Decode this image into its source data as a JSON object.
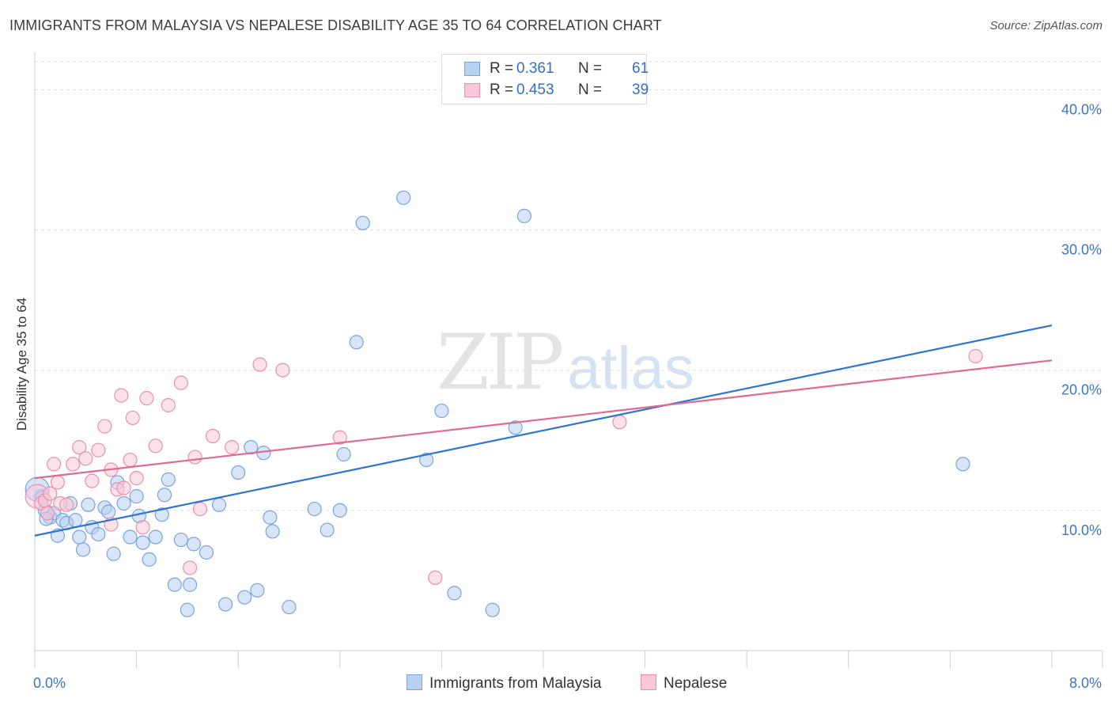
{
  "header": {
    "title": "IMMIGRANTS FROM MALAYSIA VS NEPALESE DISABILITY AGE 35 TO 64 CORRELATION CHART",
    "source": "Source: ZipAtlas.com"
  },
  "watermark": {
    "zip": "ZIP",
    "atlas": "atlas"
  },
  "legend": {
    "r_label": "R =",
    "n_label": "N =",
    "rows": [
      {
        "r": "0.361",
        "n": "61",
        "fill": "#b8d0f2",
        "stroke": "#7aa3db"
      },
      {
        "r": "0.453",
        "n": "39",
        "fill": "#f8c8d8",
        "stroke": "#e990ad"
      }
    ]
  },
  "colors": {
    "blue_line": "#2f74d0",
    "pink_line": "#e06a93",
    "tick_label": "#3e74c8"
  },
  "chart_data": {
    "type": "scatter",
    "title": "IMMIGRANTS FROM MALAYSIA VS NEPALESE DISABILITY AGE 35 TO 64 CORRELATION CHART",
    "xlabel": "",
    "ylabel": "Disability Age 35 to 64",
    "xlim": [
      0,
      8
    ],
    "ylim": [
      0,
      42
    ],
    "x_tick_labels": [
      "0.0%",
      "8.0%"
    ],
    "y_ticks": [
      10,
      20,
      30,
      40
    ],
    "y_tick_labels": [
      "10.0%",
      "20.0%",
      "30.0%",
      "40.0%"
    ],
    "series": [
      {
        "name": "Immigrants from Malaysia",
        "color": "#b8d0f2",
        "stroke": "#7aa3db",
        "trend": {
          "x": [
            0,
            8
          ],
          "y": [
            8.2,
            23.2
          ],
          "color": "#2f74d0"
        },
        "points": [
          {
            "x": 0.02,
            "y": 11.5,
            "big": true
          },
          {
            "x": 0.05,
            "y": 11.0
          },
          {
            "x": 0.08,
            "y": 10.0
          },
          {
            "x": 0.12,
            "y": 9.5
          },
          {
            "x": 0.15,
            "y": 9.8
          },
          {
            "x": 0.18,
            "y": 8.2
          },
          {
            "x": 0.22,
            "y": 9.3
          },
          {
            "x": 0.25,
            "y": 9.1
          },
          {
            "x": 0.28,
            "y": 10.5
          },
          {
            "x": 0.32,
            "y": 9.3
          },
          {
            "x": 0.35,
            "y": 8.1
          },
          {
            "x": 0.38,
            "y": 7.2
          },
          {
            "x": 0.42,
            "y": 10.4
          },
          {
            "x": 0.45,
            "y": 8.8
          },
          {
            "x": 0.5,
            "y": 8.3
          },
          {
            "x": 0.55,
            "y": 10.2
          },
          {
            "x": 0.58,
            "y": 9.9
          },
          {
            "x": 0.62,
            "y": 6.9
          },
          {
            "x": 0.65,
            "y": 12.0
          },
          {
            "x": 0.7,
            "y": 10.5
          },
          {
            "x": 0.75,
            "y": 8.1
          },
          {
            "x": 0.8,
            "y": 11.0
          },
          {
            "x": 0.82,
            "y": 9.6
          },
          {
            "x": 0.85,
            "y": 7.7
          },
          {
            "x": 0.9,
            "y": 6.5
          },
          {
            "x": 0.95,
            "y": 8.1
          },
          {
            "x": 1.0,
            "y": 9.7
          },
          {
            "x": 1.02,
            "y": 11.1
          },
          {
            "x": 1.05,
            "y": 12.2
          },
          {
            "x": 1.1,
            "y": 4.7
          },
          {
            "x": 1.15,
            "y": 7.9
          },
          {
            "x": 1.2,
            "y": 2.9
          },
          {
            "x": 1.22,
            "y": 4.7
          },
          {
            "x": 1.25,
            "y": 7.6
          },
          {
            "x": 1.35,
            "y": 7.0
          },
          {
            "x": 1.45,
            "y": 10.4
          },
          {
            "x": 1.5,
            "y": 3.3
          },
          {
            "x": 1.6,
            "y": 12.7
          },
          {
            "x": 1.65,
            "y": 3.8
          },
          {
            "x": 1.7,
            "y": 14.5
          },
          {
            "x": 1.75,
            "y": 4.3
          },
          {
            "x": 1.8,
            "y": 14.1
          },
          {
            "x": 1.85,
            "y": 9.5
          },
          {
            "x": 1.87,
            "y": 8.5
          },
          {
            "x": 2.0,
            "y": 3.1
          },
          {
            "x": 2.2,
            "y": 10.1
          },
          {
            "x": 2.3,
            "y": 8.6
          },
          {
            "x": 2.4,
            "y": 10.0
          },
          {
            "x": 2.43,
            "y": 14.0
          },
          {
            "x": 2.53,
            "y": 22.0
          },
          {
            "x": 2.58,
            "y": 30.5
          },
          {
            "x": 2.9,
            "y": 32.3
          },
          {
            "x": 3.08,
            "y": 13.6
          },
          {
            "x": 3.2,
            "y": 17.1
          },
          {
            "x": 3.3,
            "y": 4.1
          },
          {
            "x": 3.6,
            "y": 2.9
          },
          {
            "x": 3.78,
            "y": 15.9
          },
          {
            "x": 3.85,
            "y": 31.0
          },
          {
            "x": 7.3,
            "y": 13.3
          },
          {
            "x": 0.06,
            "y": 10.9
          },
          {
            "x": 0.09,
            "y": 9.4
          }
        ]
      },
      {
        "name": "Nepalese",
        "color": "#f8c8d8",
        "stroke": "#e990ad",
        "trend": {
          "x": [
            0,
            8
          ],
          "y": [
            12.3,
            20.7
          ],
          "color": "#e06a93"
        },
        "points": [
          {
            "x": 0.02,
            "y": 11.0,
            "big": true
          },
          {
            "x": 0.05,
            "y": 10.5
          },
          {
            "x": 0.08,
            "y": 10.7
          },
          {
            "x": 0.12,
            "y": 11.2
          },
          {
            "x": 0.15,
            "y": 13.3
          },
          {
            "x": 0.2,
            "y": 10.5
          },
          {
            "x": 0.25,
            "y": 10.4
          },
          {
            "x": 0.3,
            "y": 13.3
          },
          {
            "x": 0.35,
            "y": 14.5
          },
          {
            "x": 0.4,
            "y": 13.7
          },
          {
            "x": 0.45,
            "y": 12.1
          },
          {
            "x": 0.5,
            "y": 14.3
          },
          {
            "x": 0.55,
            "y": 16.0
          },
          {
            "x": 0.6,
            "y": 9.0
          },
          {
            "x": 0.6,
            "y": 12.9
          },
          {
            "x": 0.65,
            "y": 11.5
          },
          {
            "x": 0.68,
            "y": 18.2
          },
          {
            "x": 0.7,
            "y": 11.6
          },
          {
            "x": 0.75,
            "y": 13.6
          },
          {
            "x": 0.77,
            "y": 16.6
          },
          {
            "x": 0.8,
            "y": 12.3
          },
          {
            "x": 0.85,
            "y": 8.8
          },
          {
            "x": 0.88,
            "y": 18.0
          },
          {
            "x": 0.95,
            "y": 14.6
          },
          {
            "x": 1.05,
            "y": 17.5
          },
          {
            "x": 1.15,
            "y": 19.1
          },
          {
            "x": 1.22,
            "y": 5.9
          },
          {
            "x": 1.26,
            "y": 13.8
          },
          {
            "x": 1.3,
            "y": 10.1
          },
          {
            "x": 1.4,
            "y": 15.3
          },
          {
            "x": 1.55,
            "y": 14.5
          },
          {
            "x": 1.77,
            "y": 20.4
          },
          {
            "x": 1.95,
            "y": 20.0
          },
          {
            "x": 2.4,
            "y": 15.2
          },
          {
            "x": 3.15,
            "y": 5.2
          },
          {
            "x": 4.6,
            "y": 16.3
          },
          {
            "x": 7.4,
            "y": 21.0
          },
          {
            "x": 0.1,
            "y": 9.8
          },
          {
            "x": 0.18,
            "y": 12.0
          }
        ]
      }
    ]
  }
}
